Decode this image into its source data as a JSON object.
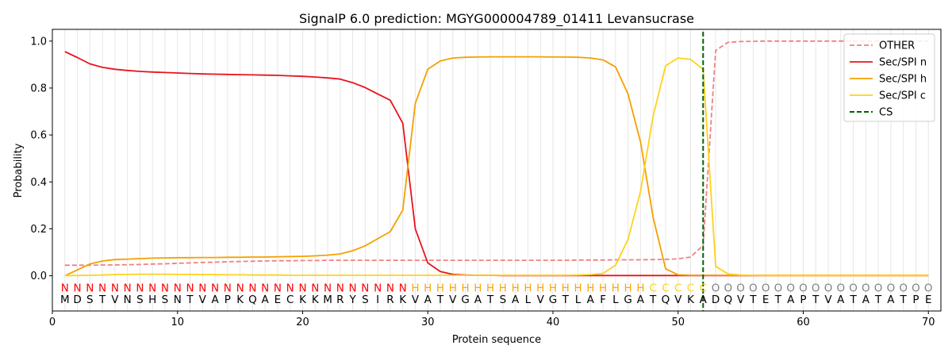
{
  "chart_data": {
    "type": "line",
    "title": "SignalP 6.0 prediction: MGYG000004789_01411 Levansucrase",
    "xlabel": "Protein sequence",
    "ylabel": "Probability",
    "xlim": [
      0,
      71
    ],
    "ylim": [
      -0.15,
      1.05
    ],
    "x_ticks": [
      0,
      10,
      20,
      30,
      40,
      50,
      60,
      70
    ],
    "y_ticks": [
      0.0,
      0.2,
      0.4,
      0.6,
      0.8,
      1.0
    ],
    "y_tick_labels": [
      "0.0",
      "0.2",
      "0.4",
      "0.6",
      "0.8",
      "1.0"
    ],
    "grid": "vertical lines at each residue",
    "legend_position": "top-right",
    "x": [
      1,
      2,
      3,
      4,
      5,
      6,
      7,
      8,
      9,
      10,
      11,
      12,
      13,
      14,
      15,
      16,
      17,
      18,
      19,
      20,
      21,
      22,
      23,
      24,
      25,
      26,
      27,
      28,
      29,
      30,
      31,
      32,
      33,
      34,
      35,
      36,
      37,
      38,
      39,
      40,
      41,
      42,
      43,
      44,
      45,
      46,
      47,
      48,
      49,
      50,
      51,
      52,
      53,
      54,
      55,
      56,
      57,
      58,
      59,
      60,
      61,
      62,
      63,
      64,
      65,
      66,
      67,
      68,
      69,
      70
    ],
    "series": [
      {
        "name": "OTHER",
        "color": "#f08080",
        "dash": "dashed",
        "values": [
          0.045,
          0.045,
          0.045,
          0.046,
          0.046,
          0.047,
          0.048,
          0.05,
          0.051,
          0.053,
          0.055,
          0.057,
          0.058,
          0.06,
          0.061,
          0.062,
          0.063,
          0.064,
          0.064,
          0.065,
          0.065,
          0.066,
          0.066,
          0.066,
          0.066,
          0.066,
          0.066,
          0.066,
          0.066,
          0.066,
          0.066,
          0.066,
          0.066,
          0.066,
          0.066,
          0.066,
          0.066,
          0.066,
          0.066,
          0.066,
          0.066,
          0.067,
          0.067,
          0.067,
          0.068,
          0.068,
          0.068,
          0.069,
          0.07,
          0.072,
          0.08,
          0.13,
          0.96,
          0.995,
          0.998,
          0.999,
          1.0,
          1.0,
          1.0,
          1.0,
          1.0,
          1.0,
          1.0,
          1.0,
          1.0,
          1.0,
          1.0,
          1.0,
          1.0,
          1.0
        ]
      },
      {
        "name": "Sec/SPI n",
        "color": "#e8141c",
        "dash": "solid",
        "values": [
          0.955,
          0.93,
          0.903,
          0.888,
          0.88,
          0.875,
          0.871,
          0.868,
          0.866,
          0.864,
          0.862,
          0.86,
          0.859,
          0.858,
          0.857,
          0.856,
          0.855,
          0.854,
          0.852,
          0.85,
          0.847,
          0.843,
          0.838,
          0.823,
          0.802,
          0.775,
          0.748,
          0.65,
          0.2,
          0.055,
          0.018,
          0.006,
          0.003,
          0.002,
          0.002,
          0.001,
          0.001,
          0.001,
          0.001,
          0.001,
          0.001,
          0.001,
          0.001,
          0.001,
          0.001,
          0.001,
          0.001,
          0.001,
          0.001,
          0.001,
          0.001,
          0.001,
          0.001,
          0.001,
          0.001,
          0.001,
          0.001,
          0.001,
          0.001,
          0.001,
          0.001,
          0.001,
          0.001,
          0.001,
          0.001,
          0.001,
          0.001,
          0.001,
          0.001,
          0.001
        ]
      },
      {
        "name": "Sec/SPI h",
        "color": "#f5a000",
        "dash": "solid",
        "values": [
          0.0,
          0.025,
          0.05,
          0.063,
          0.069,
          0.071,
          0.073,
          0.075,
          0.076,
          0.077,
          0.077,
          0.078,
          0.078,
          0.079,
          0.079,
          0.08,
          0.08,
          0.081,
          0.082,
          0.083,
          0.085,
          0.088,
          0.093,
          0.107,
          0.128,
          0.158,
          0.188,
          0.28,
          0.735,
          0.88,
          0.915,
          0.928,
          0.931,
          0.932,
          0.933,
          0.933,
          0.933,
          0.933,
          0.933,
          0.932,
          0.932,
          0.931,
          0.928,
          0.92,
          0.89,
          0.775,
          0.57,
          0.25,
          0.03,
          0.004,
          0.002,
          0.002,
          0.002,
          0.002,
          0.002,
          0.002,
          0.002,
          0.002,
          0.002,
          0.002,
          0.002,
          0.002,
          0.002,
          0.002,
          0.002,
          0.002,
          0.002,
          0.002,
          0.002,
          0.002
        ]
      },
      {
        "name": "Sec/SPI c",
        "color": "#ffd21a",
        "dash": "solid",
        "values": [
          0.001,
          0.001,
          0.002,
          0.003,
          0.005,
          0.006,
          0.007,
          0.007,
          0.007,
          0.006,
          0.006,
          0.005,
          0.005,
          0.004,
          0.004,
          0.003,
          0.003,
          0.003,
          0.002,
          0.002,
          0.002,
          0.002,
          0.002,
          0.002,
          0.002,
          0.002,
          0.002,
          0.002,
          0.002,
          0.002,
          0.002,
          0.002,
          0.002,
          0.002,
          0.002,
          0.002,
          0.002,
          0.002,
          0.002,
          0.002,
          0.002,
          0.003,
          0.005,
          0.01,
          0.045,
          0.155,
          0.36,
          0.68,
          0.895,
          0.928,
          0.922,
          0.88,
          0.04,
          0.008,
          0.003,
          0.002,
          0.001,
          0.001,
          0.001,
          0.001,
          0.001,
          0.001,
          0.001,
          0.001,
          0.001,
          0.001,
          0.001,
          0.001,
          0.001,
          0.001
        ]
      }
    ],
    "cs_line": {
      "name": "CS",
      "x": 52,
      "color": "#006400",
      "dash": "dashed"
    },
    "residues": [
      "M",
      "D",
      "S",
      "T",
      "V",
      "N",
      "S",
      "H",
      "S",
      "N",
      "T",
      "V",
      "A",
      "P",
      "K",
      "Q",
      "A",
      "E",
      "C",
      "K",
      "K",
      "M",
      "R",
      "Y",
      "S",
      "I",
      "R",
      "K",
      "V",
      "A",
      "T",
      "V",
      "G",
      "A",
      "T",
      "S",
      "A",
      "L",
      "V",
      "G",
      "T",
      "L",
      "A",
      "F",
      "L",
      "G",
      "A",
      "T",
      "Q",
      "V",
      "K",
      "A",
      "D",
      "Q",
      "V",
      "T",
      "E",
      "T",
      "A",
      "P",
      "T",
      "V",
      "A",
      "T",
      "A",
      "T",
      "A",
      "T",
      "P",
      "E"
    ],
    "region_labels": [
      "N",
      "N",
      "N",
      "N",
      "N",
      "N",
      "N",
      "N",
      "N",
      "N",
      "N",
      "N",
      "N",
      "N",
      "N",
      "N",
      "N",
      "N",
      "N",
      "N",
      "N",
      "N",
      "N",
      "N",
      "N",
      "N",
      "N",
      "N",
      "H",
      "H",
      "H",
      "H",
      "H",
      "H",
      "H",
      "H",
      "H",
      "H",
      "H",
      "H",
      "H",
      "H",
      "H",
      "H",
      "H",
      "H",
      "H",
      "C",
      "C",
      "C",
      "C",
      "C",
      "O",
      "O",
      "O",
      "O",
      "O",
      "O",
      "O",
      "O",
      "O",
      "O",
      "O",
      "O",
      "O",
      "O",
      "O",
      "O",
      "O",
      "O"
    ],
    "region_colors": {
      "N": "#ff0000",
      "H": "#ffa500",
      "C": "#ffd21a",
      "O": "#808080"
    }
  }
}
